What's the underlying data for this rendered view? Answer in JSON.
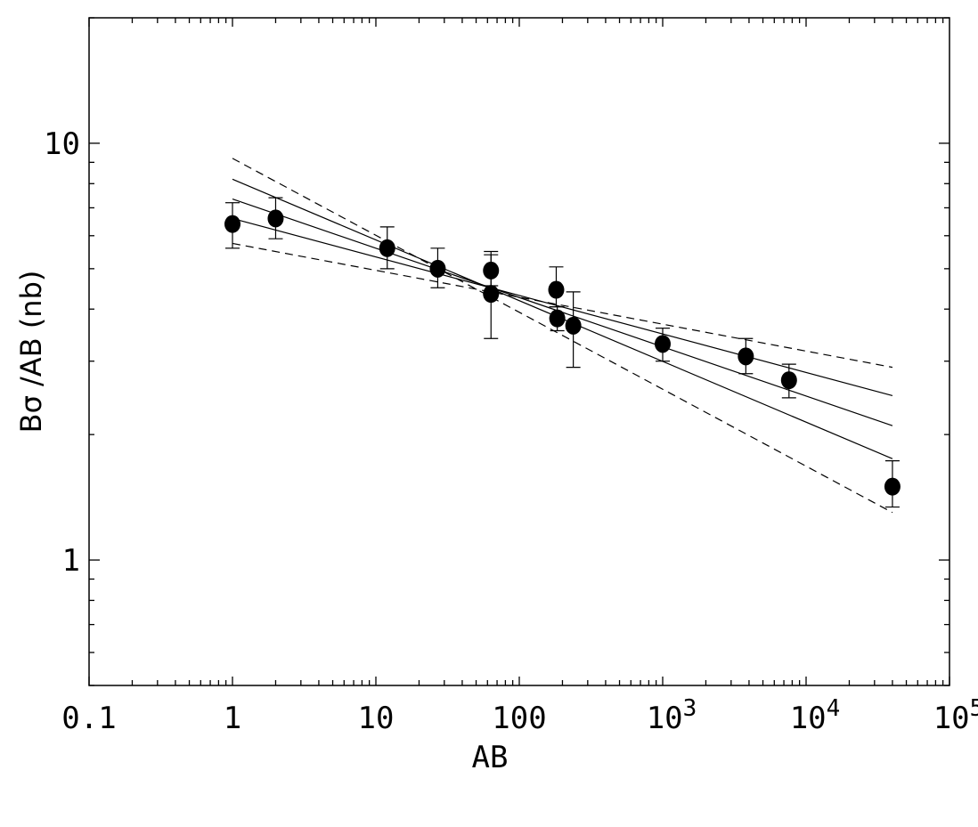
{
  "chart_data": {
    "type": "scatter",
    "xlabel": "AB",
    "ylabel": "Bσ /AB (nb)",
    "xscale": "log",
    "yscale": "log",
    "xlim": [
      0.1,
      100000
    ],
    "ylim": [
      0.5,
      20
    ],
    "grid": false,
    "x_ticks": [
      {
        "value": 0.1,
        "label": "0.1",
        "exp": ""
      },
      {
        "value": 1,
        "label": "1",
        "exp": ""
      },
      {
        "value": 10,
        "label": "10",
        "exp": ""
      },
      {
        "value": 100,
        "label": "100",
        "exp": ""
      },
      {
        "value": 1000,
        "label": "10",
        "exp": "3"
      },
      {
        "value": 10000,
        "label": "10",
        "exp": "4"
      },
      {
        "value": 100000,
        "label": "10",
        "exp": "5"
      }
    ],
    "y_ticks": [
      {
        "value": 1,
        "label": "1"
      },
      {
        "value": 10,
        "label": "10"
      }
    ],
    "points": [
      {
        "x": 1,
        "y": 6.4,
        "ylow": 5.6,
        "yhigh": 7.2
      },
      {
        "x": 2,
        "y": 6.6,
        "ylow": 5.9,
        "yhigh": 7.4
      },
      {
        "x": 12,
        "y": 5.6,
        "ylow": 5.0,
        "yhigh": 6.3
      },
      {
        "x": 27,
        "y": 5.0,
        "ylow": 4.5,
        "yhigh": 5.6
      },
      {
        "x": 63.5,
        "y": 4.95,
        "ylow": 4.55,
        "yhigh": 5.5
      },
      {
        "x": 63.5,
        "y": 4.35,
        "ylow": 3.4,
        "yhigh": 5.4
      },
      {
        "x": 181,
        "y": 4.45,
        "ylow": 4.05,
        "yhigh": 5.05
      },
      {
        "x": 184,
        "y": 3.8,
        "ylow": 3.55,
        "yhigh": 4.05
      },
      {
        "x": 238,
        "y": 3.65,
        "ylow": 2.9,
        "yhigh": 4.4
      },
      {
        "x": 1000,
        "y": 3.3,
        "ylow": 3.0,
        "yhigh": 3.6
      },
      {
        "x": 3800,
        "y": 3.08,
        "ylow": 2.8,
        "yhigh": 3.4
      },
      {
        "x": 7600,
        "y": 2.7,
        "ylow": 2.45,
        "yhigh": 2.95
      },
      {
        "x": 40000,
        "y": 1.5,
        "ylow": 1.34,
        "yhigh": 1.73
      }
    ],
    "lines": [
      {
        "style": "solid",
        "x": [
          1,
          40000
        ],
        "y": [
          6.6,
          2.48
        ]
      },
      {
        "style": "solid",
        "x": [
          1,
          40000
        ],
        "y": [
          7.35,
          2.1
        ]
      },
      {
        "style": "solid",
        "x": [
          1,
          40000
        ],
        "y": [
          8.2,
          1.75
        ]
      },
      {
        "style": "dashed",
        "x": [
          1,
          40000
        ],
        "y": [
          5.75,
          2.9
        ]
      },
      {
        "style": "dashed",
        "x": [
          1,
          40000
        ],
        "y": [
          9.2,
          1.3
        ]
      }
    ]
  }
}
